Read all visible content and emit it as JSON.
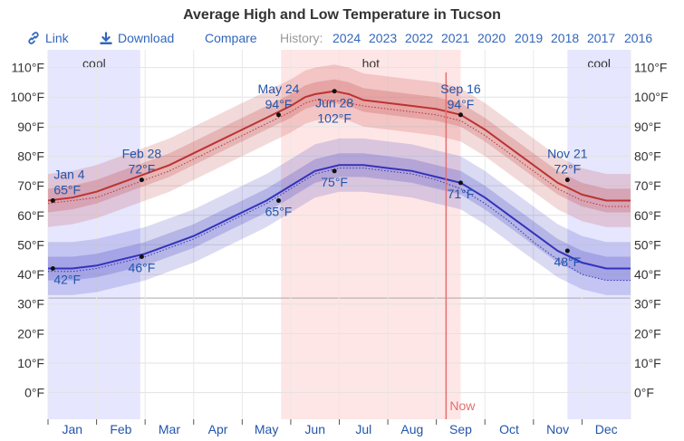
{
  "toolbar": {
    "link_label": "Link",
    "download_label": "Download",
    "compare_label": "Compare",
    "history_label": "History:",
    "years": [
      "2024",
      "2023",
      "2022",
      "2021",
      "2020",
      "2019",
      "2018",
      "2017",
      "2016"
    ]
  },
  "colors": {
    "high": "#bb3333",
    "low": "#3333bb",
    "hot_band": "#ffe6e6",
    "cool_band": "#e6e6ff",
    "now_line": "#e07070",
    "label": "#2255aa"
  },
  "chart_data": {
    "type": "line",
    "title": "Average High and Low Temperature in Tucson",
    "x_unit": "month",
    "ylim": [
      -9,
      116
    ],
    "y_ticks": [
      0,
      10,
      20,
      30,
      40,
      50,
      60,
      70,
      80,
      90,
      100,
      110
    ],
    "y_tick_labels": [
      "0°F",
      "10°F",
      "20°F",
      "30°F",
      "40°F",
      "50°F",
      "60°F",
      "70°F",
      "80°F",
      "90°F",
      "100°F",
      "110°F"
    ],
    "freezing_line": 32,
    "months": [
      "Jan",
      "Feb",
      "Mar",
      "Apr",
      "May",
      "Jun",
      "Jul",
      "Aug",
      "Sep",
      "Oct",
      "Nov",
      "Dec"
    ],
    "seasons": [
      {
        "label": "cool",
        "start": 0,
        "end": 1.9
      },
      {
        "label": "hot",
        "start": 4.8,
        "end": 8.5
      },
      {
        "label": "cool",
        "start": 10.7,
        "end": 12
      }
    ],
    "now": {
      "label": "Now",
      "x": 8.2
    },
    "series": [
      {
        "id": "high",
        "x": [
          0,
          0.5,
          1,
          1.5,
          2,
          2.5,
          3,
          3.5,
          4,
          4.5,
          5,
          5.3,
          5.5,
          5.9,
          6.2,
          6.5,
          7,
          7.5,
          8,
          8.5,
          9,
          9.5,
          10,
          10.5,
          11,
          11.5,
          12
        ],
        "values": [
          65,
          66,
          68,
          71,
          74,
          77,
          81,
          85,
          89,
          93,
          97,
          100,
          101,
          102,
          101,
          99,
          98,
          97,
          96,
          94,
          89,
          83,
          77,
          71,
          67,
          65,
          65
        ],
        "dotted": [
          64,
          65,
          66,
          69,
          72,
          75,
          79,
          83,
          87,
          91,
          95,
          98,
          99,
          99,
          98,
          97,
          96,
          95,
          94,
          92,
          87,
          81,
          75,
          69,
          65,
          63,
          63
        ],
        "band_inner": 4,
        "band_outer": 9
      },
      {
        "id": "low",
        "x": [
          0,
          0.5,
          1,
          1.5,
          2,
          2.5,
          3,
          3.5,
          4,
          4.5,
          5,
          5.5,
          6,
          6.5,
          7,
          7.5,
          8,
          8.5,
          9,
          9.5,
          10,
          10.5,
          11,
          11.5,
          12
        ],
        "values": [
          42,
          42,
          43,
          45,
          47,
          50,
          53,
          57,
          61,
          65,
          70,
          75,
          77,
          77,
          76,
          75,
          73,
          71,
          66,
          60,
          54,
          48,
          44,
          42,
          42
        ],
        "dotted": [
          41,
          41,
          42,
          44,
          46,
          49,
          52,
          56,
          60,
          64,
          69,
          74,
          76,
          76,
          75,
          74,
          72,
          69,
          64,
          58,
          51,
          45,
          40,
          38,
          38
        ],
        "band_inner": 4,
        "band_outer": 9
      }
    ],
    "annotations": [
      {
        "series": "high",
        "date": "Jan 4",
        "value": "65°F",
        "x": 0.1,
        "y": 65,
        "pos": "above"
      },
      {
        "series": "high",
        "date": "Feb 28",
        "value": "72°F",
        "x": 1.93,
        "y": 72,
        "pos": "above"
      },
      {
        "series": "high",
        "date": "May 24",
        "value": "94°F",
        "x": 4.75,
        "y": 94,
        "pos": "above"
      },
      {
        "series": "high",
        "date": "Jun 28",
        "value": "102°F",
        "x": 5.9,
        "y": 102,
        "pos": "below"
      },
      {
        "series": "high",
        "date": "Sep 16",
        "value": "94°F",
        "x": 8.5,
        "y": 94,
        "pos": "above"
      },
      {
        "series": "high",
        "date": "Nov 21",
        "value": "72°F",
        "x": 10.7,
        "y": 72,
        "pos": "above"
      },
      {
        "series": "low",
        "date": "",
        "value": "42°F",
        "x": 0.1,
        "y": 42,
        "pos": "below"
      },
      {
        "series": "low",
        "date": "",
        "value": "46°F",
        "x": 1.93,
        "y": 46,
        "pos": "below"
      },
      {
        "series": "low",
        "date": "",
        "value": "65°F",
        "x": 4.75,
        "y": 65,
        "pos": "below"
      },
      {
        "series": "low",
        "date": "",
        "value": "75°F",
        "x": 5.9,
        "y": 75,
        "pos": "below"
      },
      {
        "series": "low",
        "date": "",
        "value": "71°F",
        "x": 8.5,
        "y": 71,
        "pos": "below"
      },
      {
        "series": "low",
        "date": "",
        "value": "48°F",
        "x": 10.7,
        "y": 48,
        "pos": "below"
      }
    ]
  }
}
